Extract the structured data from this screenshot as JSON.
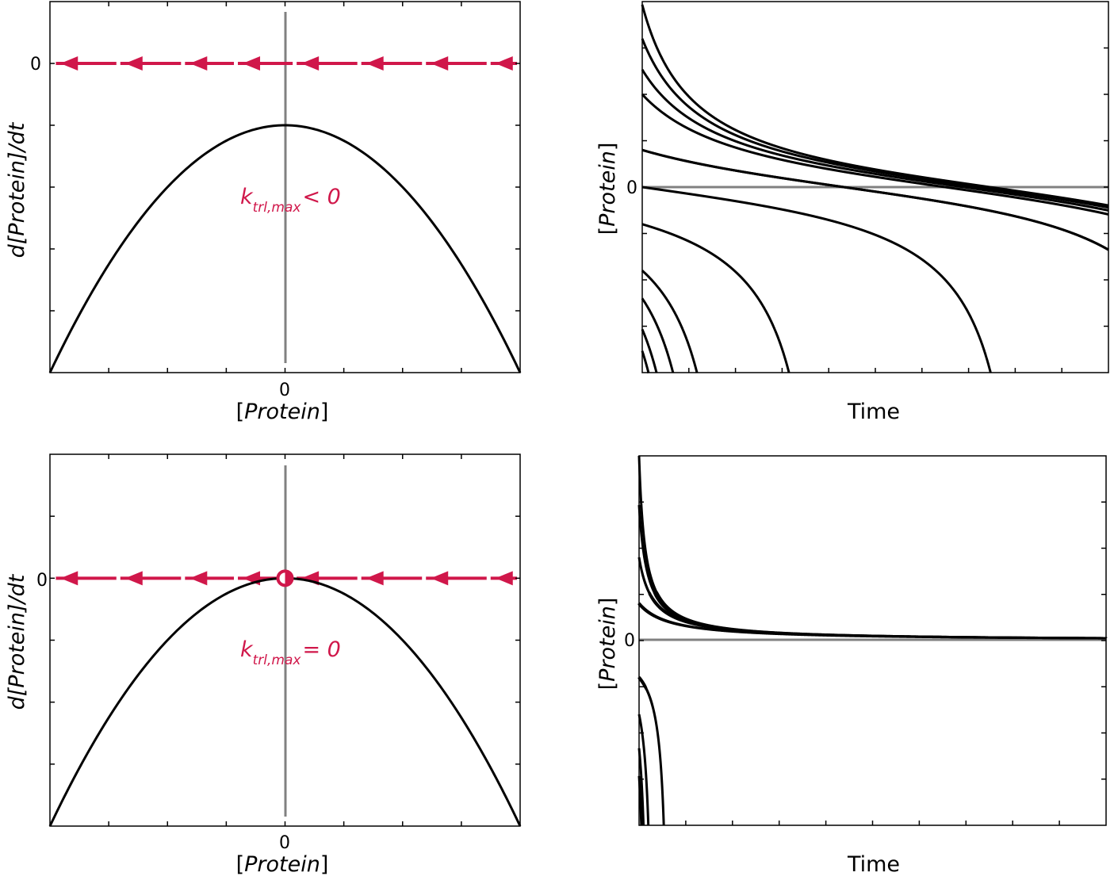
{
  "colors": {
    "curve": "#000000",
    "axis_line": "#808080",
    "flow": "#d0174a",
    "frame": "#000000"
  },
  "chart_data": [
    {
      "id": "phase-top",
      "type": "line",
      "title": "",
      "xlabel_pre": "[",
      "xlabel_it": "Protein",
      "xlabel_post": "]",
      "ylabel_pre": "d[",
      "ylabel_it": "Protein",
      "ylabel_post": "]/dt",
      "xlim": [
        -2,
        2
      ],
      "ylim": [
        -2.5,
        0.5
      ],
      "x_tick_label": "0",
      "y_tick_label": "0",
      "annotation_k": "k",
      "annotation_sub": "trl,max",
      "annotation_rel": "< 0",
      "curve": {
        "formula": "-0.5 - x^2/2",
        "x_range": [
          -2,
          2
        ]
      },
      "flow_direction": "left",
      "arrow_x": [
        -1.85,
        -1.3,
        -0.75,
        -0.3,
        0.2,
        0.75,
        1.3,
        1.85
      ],
      "fixed_points": []
    },
    {
      "id": "time-top",
      "type": "line",
      "title": "",
      "xlabel": "Time",
      "ylabel_pre": "[",
      "ylabel_it": "Protein",
      "ylabel_post": "]",
      "ylim": [
        -3,
        3
      ],
      "y_tick_label": "0",
      "series": [
        {
          "y0": 2.95
        },
        {
          "y0": 2.4
        },
        {
          "y0": 1.9
        },
        {
          "y0": 1.5
        },
        {
          "y0": 0.6
        },
        {
          "y0": 0.6
        },
        {
          "y0": 0.0
        },
        {
          "y0": -0.6
        },
        {
          "y0": -1.35
        },
        {
          "y0": -1.8
        },
        {
          "y0": -2.3
        },
        {
          "y0": -2.65
        }
      ]
    },
    {
      "id": "phase-bottom",
      "type": "line",
      "title": "",
      "xlabel_pre": "[",
      "xlabel_it": "Protein",
      "xlabel_post": "]",
      "ylabel_pre": "d[",
      "ylabel_it": "Protein",
      "ylabel_post": "]/dt",
      "xlim": [
        -2,
        2
      ],
      "ylim": [
        -2,
        1
      ],
      "x_tick_label": "0",
      "y_tick_label": "0",
      "annotation_k": "k",
      "annotation_sub": "trl,max",
      "annotation_rel": "= 0",
      "curve": {
        "formula": "-x^2/2",
        "x_range": [
          -2,
          2
        ]
      },
      "flow_direction": "left",
      "arrow_x": [
        -1.85,
        -1.3,
        -0.75,
        -0.3,
        0.2,
        0.75,
        1.3,
        1.85
      ],
      "fixed_points": [
        {
          "x": 0,
          "type": "half-stable"
        }
      ]
    },
    {
      "id": "time-bottom",
      "type": "line",
      "title": "",
      "xlabel": "Time",
      "ylabel_pre": "[",
      "ylabel_it": "Protein",
      "ylabel_post": "]",
      "ylim": [
        -3,
        3
      ],
      "y_tick_label": "0",
      "series": [
        {
          "y0": 3.0
        },
        {
          "y0": 2.2
        },
        {
          "y0": 1.35
        },
        {
          "y0": 0.6
        },
        {
          "y0": -0.6
        },
        {
          "y0": -1.2
        },
        {
          "y0": -1.75
        },
        {
          "y0": -2.2
        }
      ]
    }
  ]
}
